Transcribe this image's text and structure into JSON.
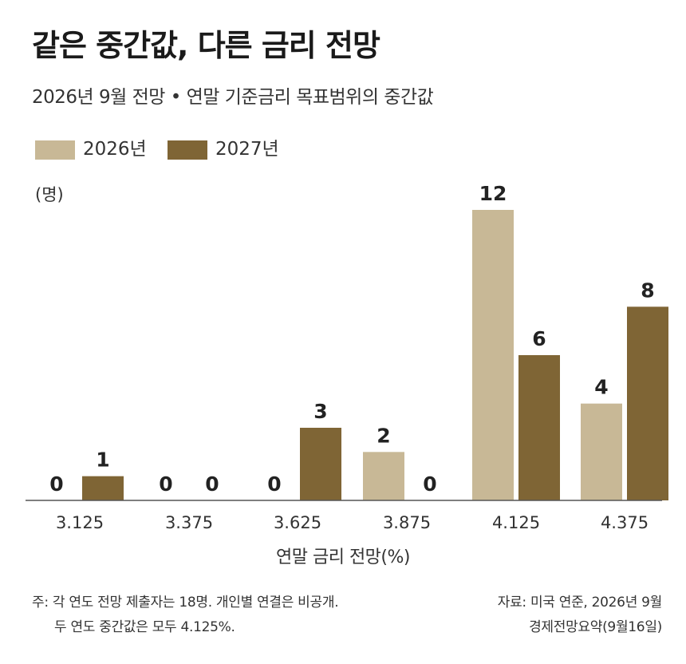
{
  "chart_data": {
    "type": "bar",
    "title": "같은 중간값, 다른 금리 전망",
    "subtitle": "2026년 9월 전망 • 연말 기준금리 목표범위의 중간값",
    "unit_label": "(명)",
    "xlabel": "연말 금리 전망(%)",
    "categories": [
      "3.125",
      "3.375",
      "3.625",
      "3.875",
      "4.125",
      "4.375"
    ],
    "series": [
      {
        "name": "2026년",
        "values": [
          0,
          0,
          0,
          2,
          12,
          4
        ],
        "color": "#c8b896"
      },
      {
        "name": "2027년",
        "values": [
          1,
          0,
          3,
          0,
          6,
          8
        ],
        "color": "#7f6535"
      }
    ],
    "ylim": [
      0,
      12
    ],
    "grid": false,
    "legend": "top-left"
  },
  "footer": {
    "note_line1": "주: 각 연도 전망 제출자는 18명. 개인별 연결은 비공개.",
    "note_line2": "두 연도 중간값은 모두 4.125%.",
    "source_line1": "자료: 미국 연준, 2026년 9월",
    "source_line2": "경제전망요약(9월16일)"
  }
}
